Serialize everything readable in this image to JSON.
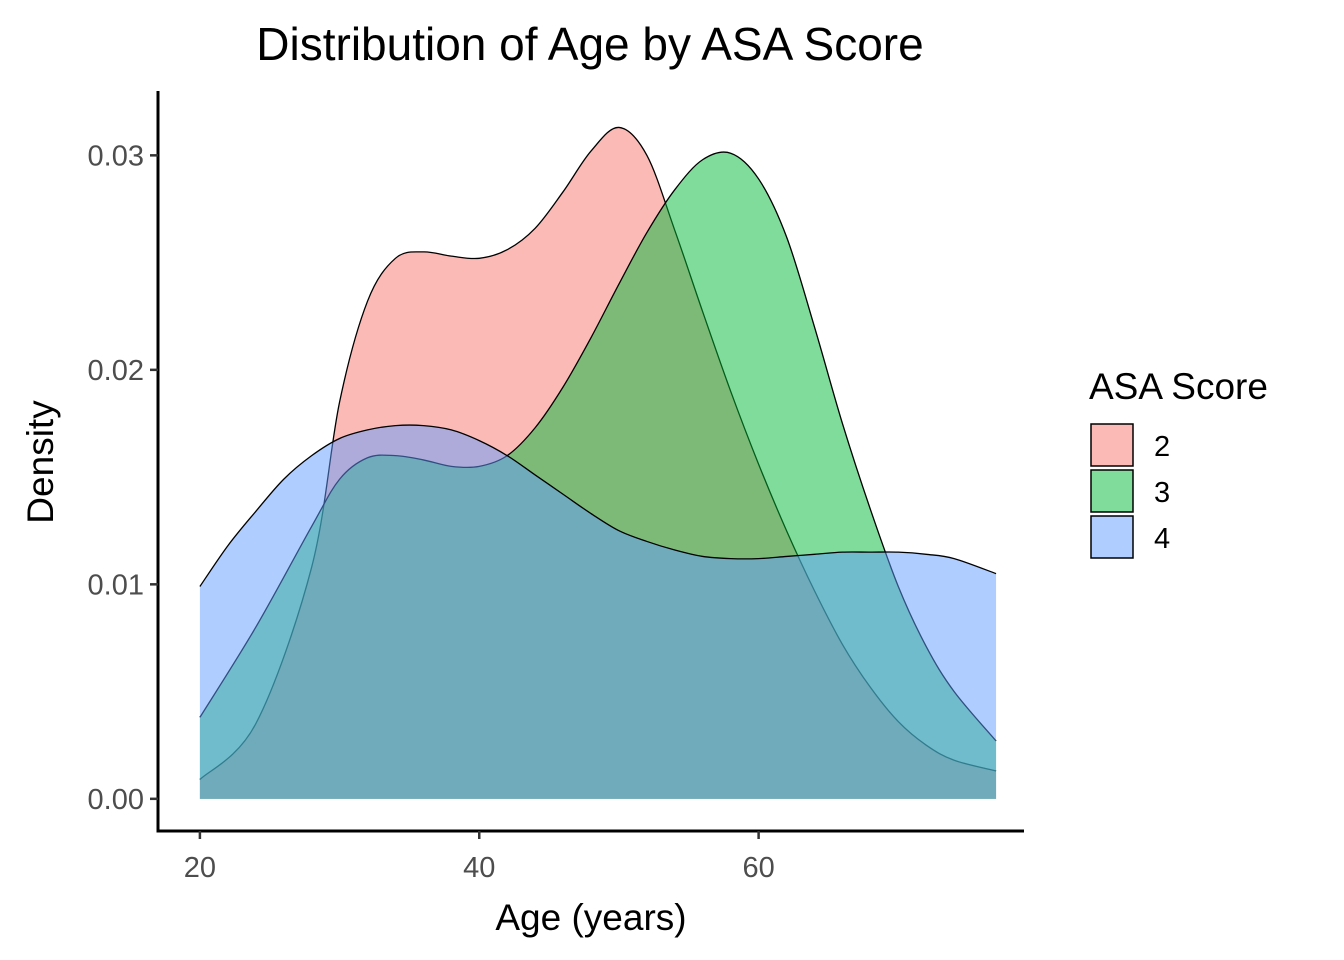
{
  "chart_data": {
    "type": "area",
    "title": "Distribution of Age by ASA Score",
    "xlabel": "Age (years)",
    "ylabel": "Density",
    "xlim": [
      17,
      79
    ],
    "ylim": [
      -0.0015,
      0.033
    ],
    "x_ticks": [
      20,
      40,
      60
    ],
    "x_tick_labels": [
      "20",
      "40",
      "60"
    ],
    "y_ticks": [
      0.0,
      0.01,
      0.02,
      0.03
    ],
    "y_tick_labels": [
      "0.00",
      "0.01",
      "0.02",
      "0.03"
    ],
    "grid": false,
    "legend": {
      "title": "ASA Score",
      "placement": "right"
    },
    "fill_opacity": 0.5,
    "series": [
      {
        "name": "2",
        "color": "#F8766D",
        "x": [
          20,
          24,
          28,
          30,
          32,
          34,
          36,
          38,
          40,
          42,
          44,
          46,
          48,
          50,
          52,
          54,
          56,
          58,
          60,
          62,
          64,
          66,
          68,
          70,
          72,
          74,
          77
        ],
        "y": [
          0.0009,
          0.0035,
          0.0108,
          0.0185,
          0.0232,
          0.0252,
          0.0255,
          0.0253,
          0.0252,
          0.0256,
          0.0266,
          0.0283,
          0.0302,
          0.0313,
          0.03,
          0.0265,
          0.0227,
          0.019,
          0.0156,
          0.0125,
          0.0097,
          0.0072,
          0.0052,
          0.0036,
          0.0025,
          0.0018,
          0.0013
        ]
      },
      {
        "name": "3",
        "color": "#00BA38",
        "x": [
          20,
          24,
          28,
          30,
          32,
          34,
          36,
          38,
          40,
          42,
          44,
          46,
          48,
          50,
          52,
          54,
          56,
          58,
          60,
          62,
          64,
          66,
          68,
          70,
          72,
          74,
          77
        ],
        "y": [
          0.0038,
          0.008,
          0.0127,
          0.0149,
          0.0159,
          0.016,
          0.0158,
          0.0155,
          0.0155,
          0.016,
          0.0173,
          0.0192,
          0.0215,
          0.024,
          0.0264,
          0.0284,
          0.0298,
          0.0301,
          0.0289,
          0.0262,
          0.022,
          0.0175,
          0.0135,
          0.0099,
          0.0071,
          0.005,
          0.0027
        ]
      },
      {
        "name": "4",
        "color": "#619CFF",
        "x": [
          20,
          22,
          24,
          26,
          28,
          30,
          32,
          34,
          36,
          38,
          40,
          42,
          44,
          46,
          48,
          50,
          52,
          54,
          56,
          58,
          60,
          62,
          64,
          66,
          68,
          70,
          72,
          74,
          77
        ],
        "y": [
          0.0099,
          0.0118,
          0.0134,
          0.0149,
          0.016,
          0.0168,
          0.0172,
          0.0174,
          0.0174,
          0.0172,
          0.0167,
          0.016,
          0.0151,
          0.0142,
          0.0133,
          0.0125,
          0.012,
          0.0116,
          0.0113,
          0.0112,
          0.0112,
          0.0113,
          0.0114,
          0.0115,
          0.0115,
          0.0115,
          0.0114,
          0.0112,
          0.0105
        ]
      }
    ]
  }
}
